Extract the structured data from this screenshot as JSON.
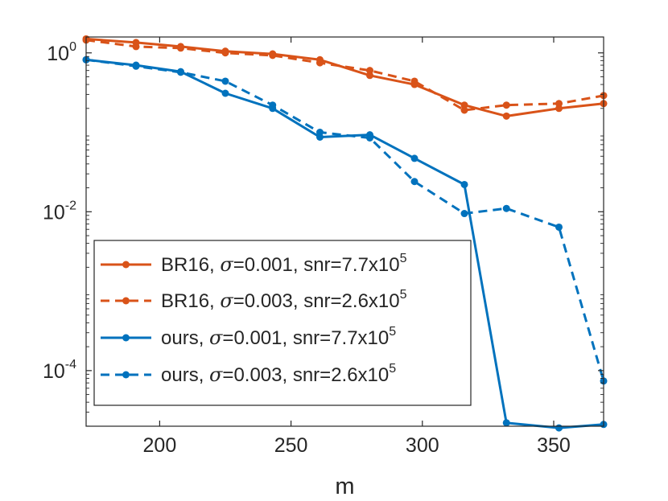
{
  "chart_data": {
    "type": "line",
    "xlabel": "m",
    "ylabel": "",
    "xlim": [
      172,
      369
    ],
    "ylim_log10": [
      -4.7,
      0.2
    ],
    "y_scale": "log",
    "x_ticks": [
      200,
      250,
      300,
      350
    ],
    "y_ticks": [
      {
        "exp": 0,
        "base": "10",
        "sup": "0"
      },
      {
        "exp": -2,
        "base": "10",
        "sup": "-2"
      },
      {
        "exp": -4,
        "base": "10",
        "sup": "-4"
      }
    ],
    "legend_position": "bottom-left",
    "series": [
      {
        "name": "BR16",
        "sigma": "=0.001",
        "snr": ", snr=7.7x10",
        "snr_exp": "5",
        "color": "#D95319",
        "dash": "solid",
        "x": [
          172,
          191,
          208,
          225,
          243,
          261,
          280,
          297,
          316,
          332,
          352,
          369
        ],
        "y": [
          1.5,
          1.35,
          1.2,
          1.05,
          0.97,
          0.82,
          0.52,
          0.4,
          0.22,
          0.16,
          0.2,
          0.23
        ]
      },
      {
        "name": "BR16",
        "sigma": "=0.003",
        "snr": ", snr=2.6x10",
        "snr_exp": "5",
        "color": "#D95319",
        "dash": "dashed",
        "x": [
          172,
          191,
          208,
          225,
          243,
          261,
          280,
          297,
          316,
          332,
          352,
          369
        ],
        "y": [
          1.45,
          1.2,
          1.15,
          1.0,
          0.93,
          0.75,
          0.6,
          0.44,
          0.19,
          0.22,
          0.23,
          0.29
        ]
      },
      {
        "name": "ours",
        "sigma": "=0.001",
        "snr": ", snr=7.7x10",
        "snr_exp": "5",
        "color": "#0072BD",
        "dash": "solid",
        "x": [
          172,
          191,
          208,
          225,
          243,
          261,
          280,
          297,
          316,
          332,
          352,
          369
        ],
        "y": [
          0.82,
          0.7,
          0.58,
          0.31,
          0.2,
          0.087,
          0.093,
          0.047,
          0.022,
          2.2e-05,
          1.9e-05,
          2.1e-05
        ]
      },
      {
        "name": "ours",
        "sigma": "=0.003",
        "snr": ", snr=2.6x10",
        "snr_exp": "5",
        "color": "#0072BD",
        "dash": "dashed",
        "x": [
          172,
          191,
          208,
          225,
          243,
          261,
          280,
          297,
          316,
          332,
          352,
          369
        ],
        "y": [
          0.82,
          0.68,
          0.57,
          0.44,
          0.22,
          0.1,
          0.085,
          0.024,
          0.0095,
          0.011,
          0.0064,
          7.4e-05
        ]
      }
    ]
  },
  "colors": {
    "axis": "#262626",
    "legend_border": "#262626",
    "background": "#ffffff"
  }
}
